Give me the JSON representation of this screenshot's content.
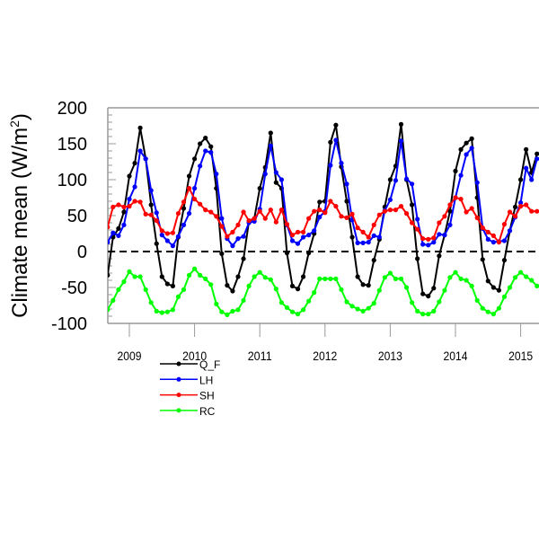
{
  "chart_data": {
    "type": "line",
    "title": "",
    "xlabel": "",
    "ylabel": "Climate mean (W/m",
    "ylabel_superscript": "2",
    "ylabel_close": ")",
    "ylim": [
      -100,
      200
    ],
    "yticks": [
      "200",
      "150",
      "100",
      "50",
      "0",
      "-50",
      "-100"
    ],
    "ytick_values": [
      200,
      150,
      100,
      50,
      0,
      -50,
      -100
    ],
    "xtick_labels": [
      "2009",
      "2010",
      "2011",
      "2012",
      "2013",
      "2014",
      "2015"
    ],
    "reference_line": {
      "y": 0,
      "style": "dashed",
      "color": "#000000"
    },
    "grid": false,
    "legend_placement": "below-left",
    "x": [
      "2008-09",
      "2008-10",
      "2008-11",
      "2008-12",
      "2009-01",
      "2009-02",
      "2009-03",
      "2009-04",
      "2009-05",
      "2009-06",
      "2009-07",
      "2009-08",
      "2009-09",
      "2009-10",
      "2009-11",
      "2009-12",
      "2010-01",
      "2010-02",
      "2010-03",
      "2010-04",
      "2010-05",
      "2010-06",
      "2010-07",
      "2010-08",
      "2010-09",
      "2010-10",
      "2010-11",
      "2010-12",
      "2011-01",
      "2011-02",
      "2011-03",
      "2011-04",
      "2011-05",
      "2011-06",
      "2011-07",
      "2011-08",
      "2011-09",
      "2011-10",
      "2011-11",
      "2011-12",
      "2012-01",
      "2012-02",
      "2012-03",
      "2012-04",
      "2012-05",
      "2012-06",
      "2012-07",
      "2012-08",
      "2012-09",
      "2012-10",
      "2012-11",
      "2012-12",
      "2013-01",
      "2013-02",
      "2013-03",
      "2013-04",
      "2013-05",
      "2013-06",
      "2013-07",
      "2013-08",
      "2013-09",
      "2013-10",
      "2013-11",
      "2013-12",
      "2014-01",
      "2014-02",
      "2014-03",
      "2014-04",
      "2014-05",
      "2014-06",
      "2014-07",
      "2014-08",
      "2014-09",
      "2014-10",
      "2014-11",
      "2014-12",
      "2015-01",
      "2015-02",
      "2015-03",
      "2015-04"
    ],
    "series": [
      {
        "name": "Q_F",
        "color": "#000000",
        "values": [
          -33,
          20,
          32,
          55,
          105,
          123,
          172,
          129,
          65,
          11,
          -35,
          -45,
          -48,
          20,
          60,
          105,
          129,
          150,
          158,
          146,
          88,
          -3,
          -47,
          -55,
          -35,
          -10,
          42,
          46,
          88,
          117,
          165,
          96,
          88,
          -2,
          -48,
          -52,
          -35,
          -2,
          25,
          69,
          70,
          152,
          176,
          118,
          70,
          20,
          -35,
          -46,
          -47,
          -12,
          17,
          62,
          100,
          119,
          177,
          100,
          65,
          -10,
          -59,
          -62,
          -51,
          -6,
          23,
          56,
          112,
          142,
          151,
          157,
          75,
          -11,
          -41,
          -50,
          -54,
          -12,
          29,
          62,
          100,
          142,
          110,
          136
        ]
      },
      {
        "name": "LH",
        "color": "#0000ff",
        "values": [
          13,
          26,
          22,
          37,
          73,
          90,
          140,
          129,
          85,
          54,
          23,
          15,
          8,
          21,
          37,
          53,
          88,
          119,
          140,
          138,
          108,
          46,
          18,
          8,
          18,
          21,
          40,
          42,
          59,
          108,
          147,
          110,
          100,
          37,
          15,
          11,
          20,
          23,
          29,
          48,
          56,
          120,
          155,
          123,
          94,
          44,
          12,
          12,
          13,
          22,
          20,
          57,
          72,
          99,
          154,
          101,
          94,
          45,
          10,
          9,
          13,
          24,
          23,
          37,
          75,
          106,
          135,
          144,
          96,
          32,
          17,
          13,
          14,
          15,
          29,
          48,
          68,
          116,
          100,
          129
        ]
      },
      {
        "name": "SH",
        "color": "#ff0000",
        "values": [
          34,
          62,
          65,
          62,
          63,
          70,
          69,
          52,
          51,
          43,
          29,
          25,
          26,
          53,
          69,
          88,
          73,
          66,
          58,
          55,
          49,
          35,
          21,
          27,
          37,
          55,
          43,
          46,
          56,
          46,
          58,
          41,
          58,
          38,
          23,
          27,
          27,
          46,
          56,
          58,
          54,
          70,
          63,
          49,
          47,
          52,
          33,
          27,
          20,
          37,
          51,
          56,
          58,
          58,
          63,
          53,
          40,
          31,
          18,
          17,
          19,
          40,
          49,
          65,
          75,
          73,
          55,
          60,
          47,
          33,
          27,
          22,
          13,
          38,
          55,
          49,
          63,
          65,
          56,
          56
        ]
      },
      {
        "name": "RC",
        "color": "#00ff00",
        "values": [
          -81,
          -68,
          -53,
          -42,
          -28,
          -35,
          -35,
          -53,
          -71,
          -83,
          -85,
          -84,
          -81,
          -63,
          -53,
          -33,
          -24,
          -33,
          -38,
          -46,
          -73,
          -84,
          -88,
          -83,
          -81,
          -68,
          -48,
          -35,
          -29,
          -36,
          -39,
          -52,
          -71,
          -78,
          -84,
          -87,
          -81,
          -69,
          -57,
          -38,
          -38,
          -38,
          -38,
          -53,
          -70,
          -76,
          -80,
          -83,
          -79,
          -72,
          -54,
          -36,
          -30,
          -38,
          -38,
          -50,
          -71,
          -83,
          -87,
          -87,
          -83,
          -70,
          -54,
          -36,
          -29,
          -38,
          -40,
          -48,
          -68,
          -79,
          -84,
          -87,
          -79,
          -63,
          -50,
          -36,
          -29,
          -35,
          -40,
          -48
        ]
      }
    ]
  }
}
